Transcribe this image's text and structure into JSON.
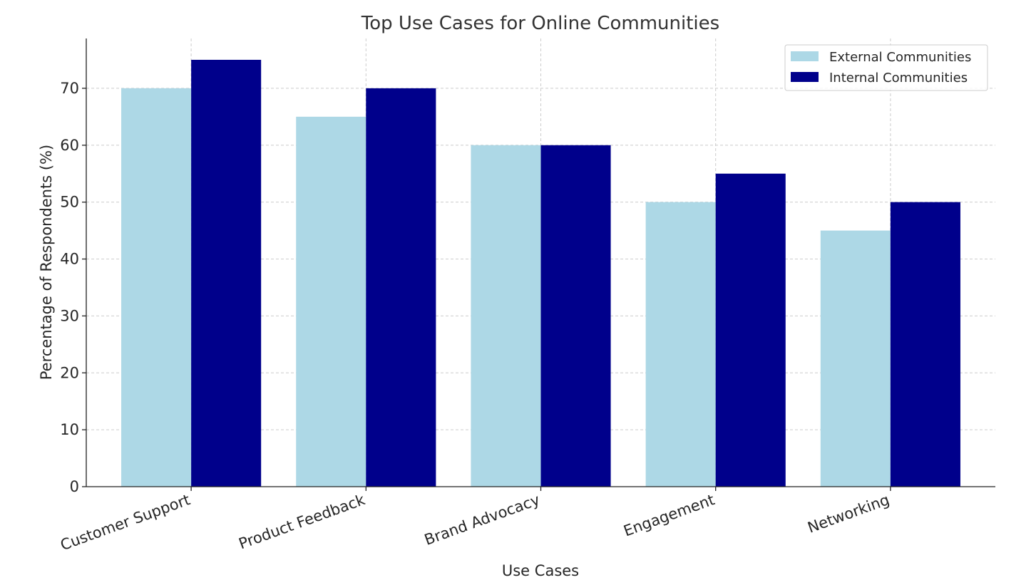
{
  "chart_data": {
    "type": "bar",
    "title": "Top Use Cases for Online Communities",
    "xlabel": "Use Cases",
    "ylabel": "Percentage of Respondents (%)",
    "categories": [
      "Customer Support",
      "Product Feedback",
      "Brand Advocacy",
      "Engagement",
      "Networking"
    ],
    "series": [
      {
        "name": "External Communities",
        "color": "#add8e6",
        "values": [
          70,
          65,
          60,
          50,
          45
        ]
      },
      {
        "name": "Internal Communities",
        "color": "#00008b",
        "values": [
          75,
          70,
          60,
          55,
          50
        ]
      }
    ],
    "ylim": [
      0,
      78.75
    ],
    "yticks": [
      0,
      10,
      20,
      30,
      40,
      50,
      60,
      70
    ],
    "grid": true,
    "legend_position": "top-right"
  }
}
